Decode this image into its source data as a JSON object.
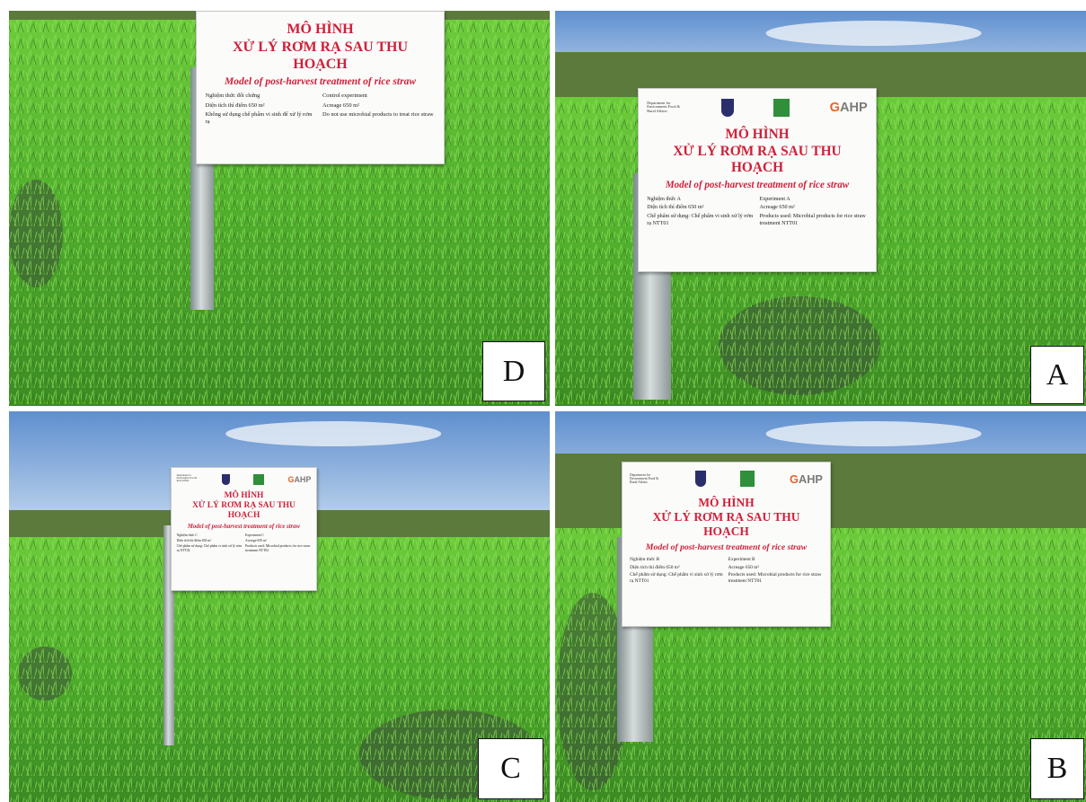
{
  "panels": [
    {
      "label": "D",
      "sign": {
        "title": "MÔ HÌNH",
        "subtitle": "XỬ LÝ RƠM RẠ SAU THU HOẠCH",
        "english": "Model of post-harvest treatment of rice straw",
        "rows": [
          [
            "Nghiệm thức đối chứng",
            "Control experiment"
          ],
          [
            "Diện tích thí điểm 650 m²",
            "Acreage 650 m²"
          ],
          [
            "Không sử dụng chế phẩm vi sinh để xử lý rơm rạ",
            "Do not use microbial products to treat rice straw"
          ]
        ]
      }
    },
    {
      "label": "A",
      "sign": {
        "logos": {
          "defra": "Department for Environment Food & Rural Affairs",
          "gahp": "GAHP"
        },
        "title": "MÔ HÌNH",
        "subtitle": "XỬ LÝ RƠM RẠ SAU THU HOẠCH",
        "english": "Model of post-harvest treatment of rice straw",
        "rows": [
          [
            "Nghiệm thức A",
            "Experiment A"
          ],
          [
            "Diện tích thí điểm 650 m²",
            "Acreage 650 m²"
          ],
          [
            "Chế phẩm sử dụng: Chế phẩm vi sinh xử lý rơm rạ NTT01",
            "Products used: Microbial products for rice straw treatment NTT01"
          ]
        ]
      }
    },
    {
      "label": "C",
      "sign": {
        "logos": {
          "defra": "Department for Environment Food & Rural Affairs",
          "gahp": "GAHP"
        },
        "title": "MÔ HÌNH",
        "subtitle": "XỬ LÝ RƠM RẠ SAU THU HOẠCH",
        "english": "Model of post-harvest treatment of rice straw",
        "rows": [
          [
            "Nghiệm thức C",
            "Experiment C"
          ],
          [
            "Diện tích thí điểm 650 m²",
            "Acreage 650 m²"
          ],
          [
            "Chế phẩm sử dụng: Chế phẩm vi sinh xử lý rơm rạ NTT02",
            "Products used: Microbial products for rice straw treatment NTT02"
          ]
        ]
      }
    },
    {
      "label": "B",
      "sign": {
        "logos": {
          "defra": "Department for Environment Food & Rural Affairs",
          "gahp": "GAHP"
        },
        "title": "MÔ HÌNH",
        "subtitle": "XỬ LÝ RƠM RẠ SAU THU HOẠCH",
        "english": "Model of post-harvest treatment of rice straw",
        "rows": [
          [
            "Nghiệm thức B",
            "Experiment B"
          ],
          [
            "Diện tích thí điểm 650 m²",
            "Acreage 650 m²"
          ],
          [
            "Chế phẩm sử dụng: Chế phẩm vi sinh xử lý rơm rạ NTT01",
            "Products used: Microbial products for rice straw treatment NTT01"
          ]
        ]
      }
    }
  ]
}
